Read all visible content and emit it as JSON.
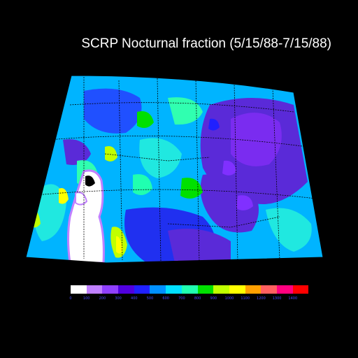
{
  "title": "SCRP Nocturnal fraction (5/15/88-7/15/88)",
  "legend": {
    "colors": [
      "#ffffff",
      "#c080ff",
      "#9040ff",
      "#5000e0",
      "#2020ff",
      "#0090ff",
      "#00e0ff",
      "#20ffb0",
      "#00e000",
      "#c0ff00",
      "#ffff00",
      "#ffa000",
      "#ff6060",
      "#ff0080",
      "#ff0000"
    ],
    "tick_labels": [
      "0",
      "100",
      "200",
      "300",
      "400",
      "500",
      "600",
      "700",
      "800",
      "900",
      "1000",
      "1100",
      "1200",
      "1300",
      "1400"
    ]
  },
  "colors": {
    "background": "#000000",
    "title": "#ffffff",
    "ocean_mask": "#ffffff",
    "boundaries": "#000000"
  }
}
